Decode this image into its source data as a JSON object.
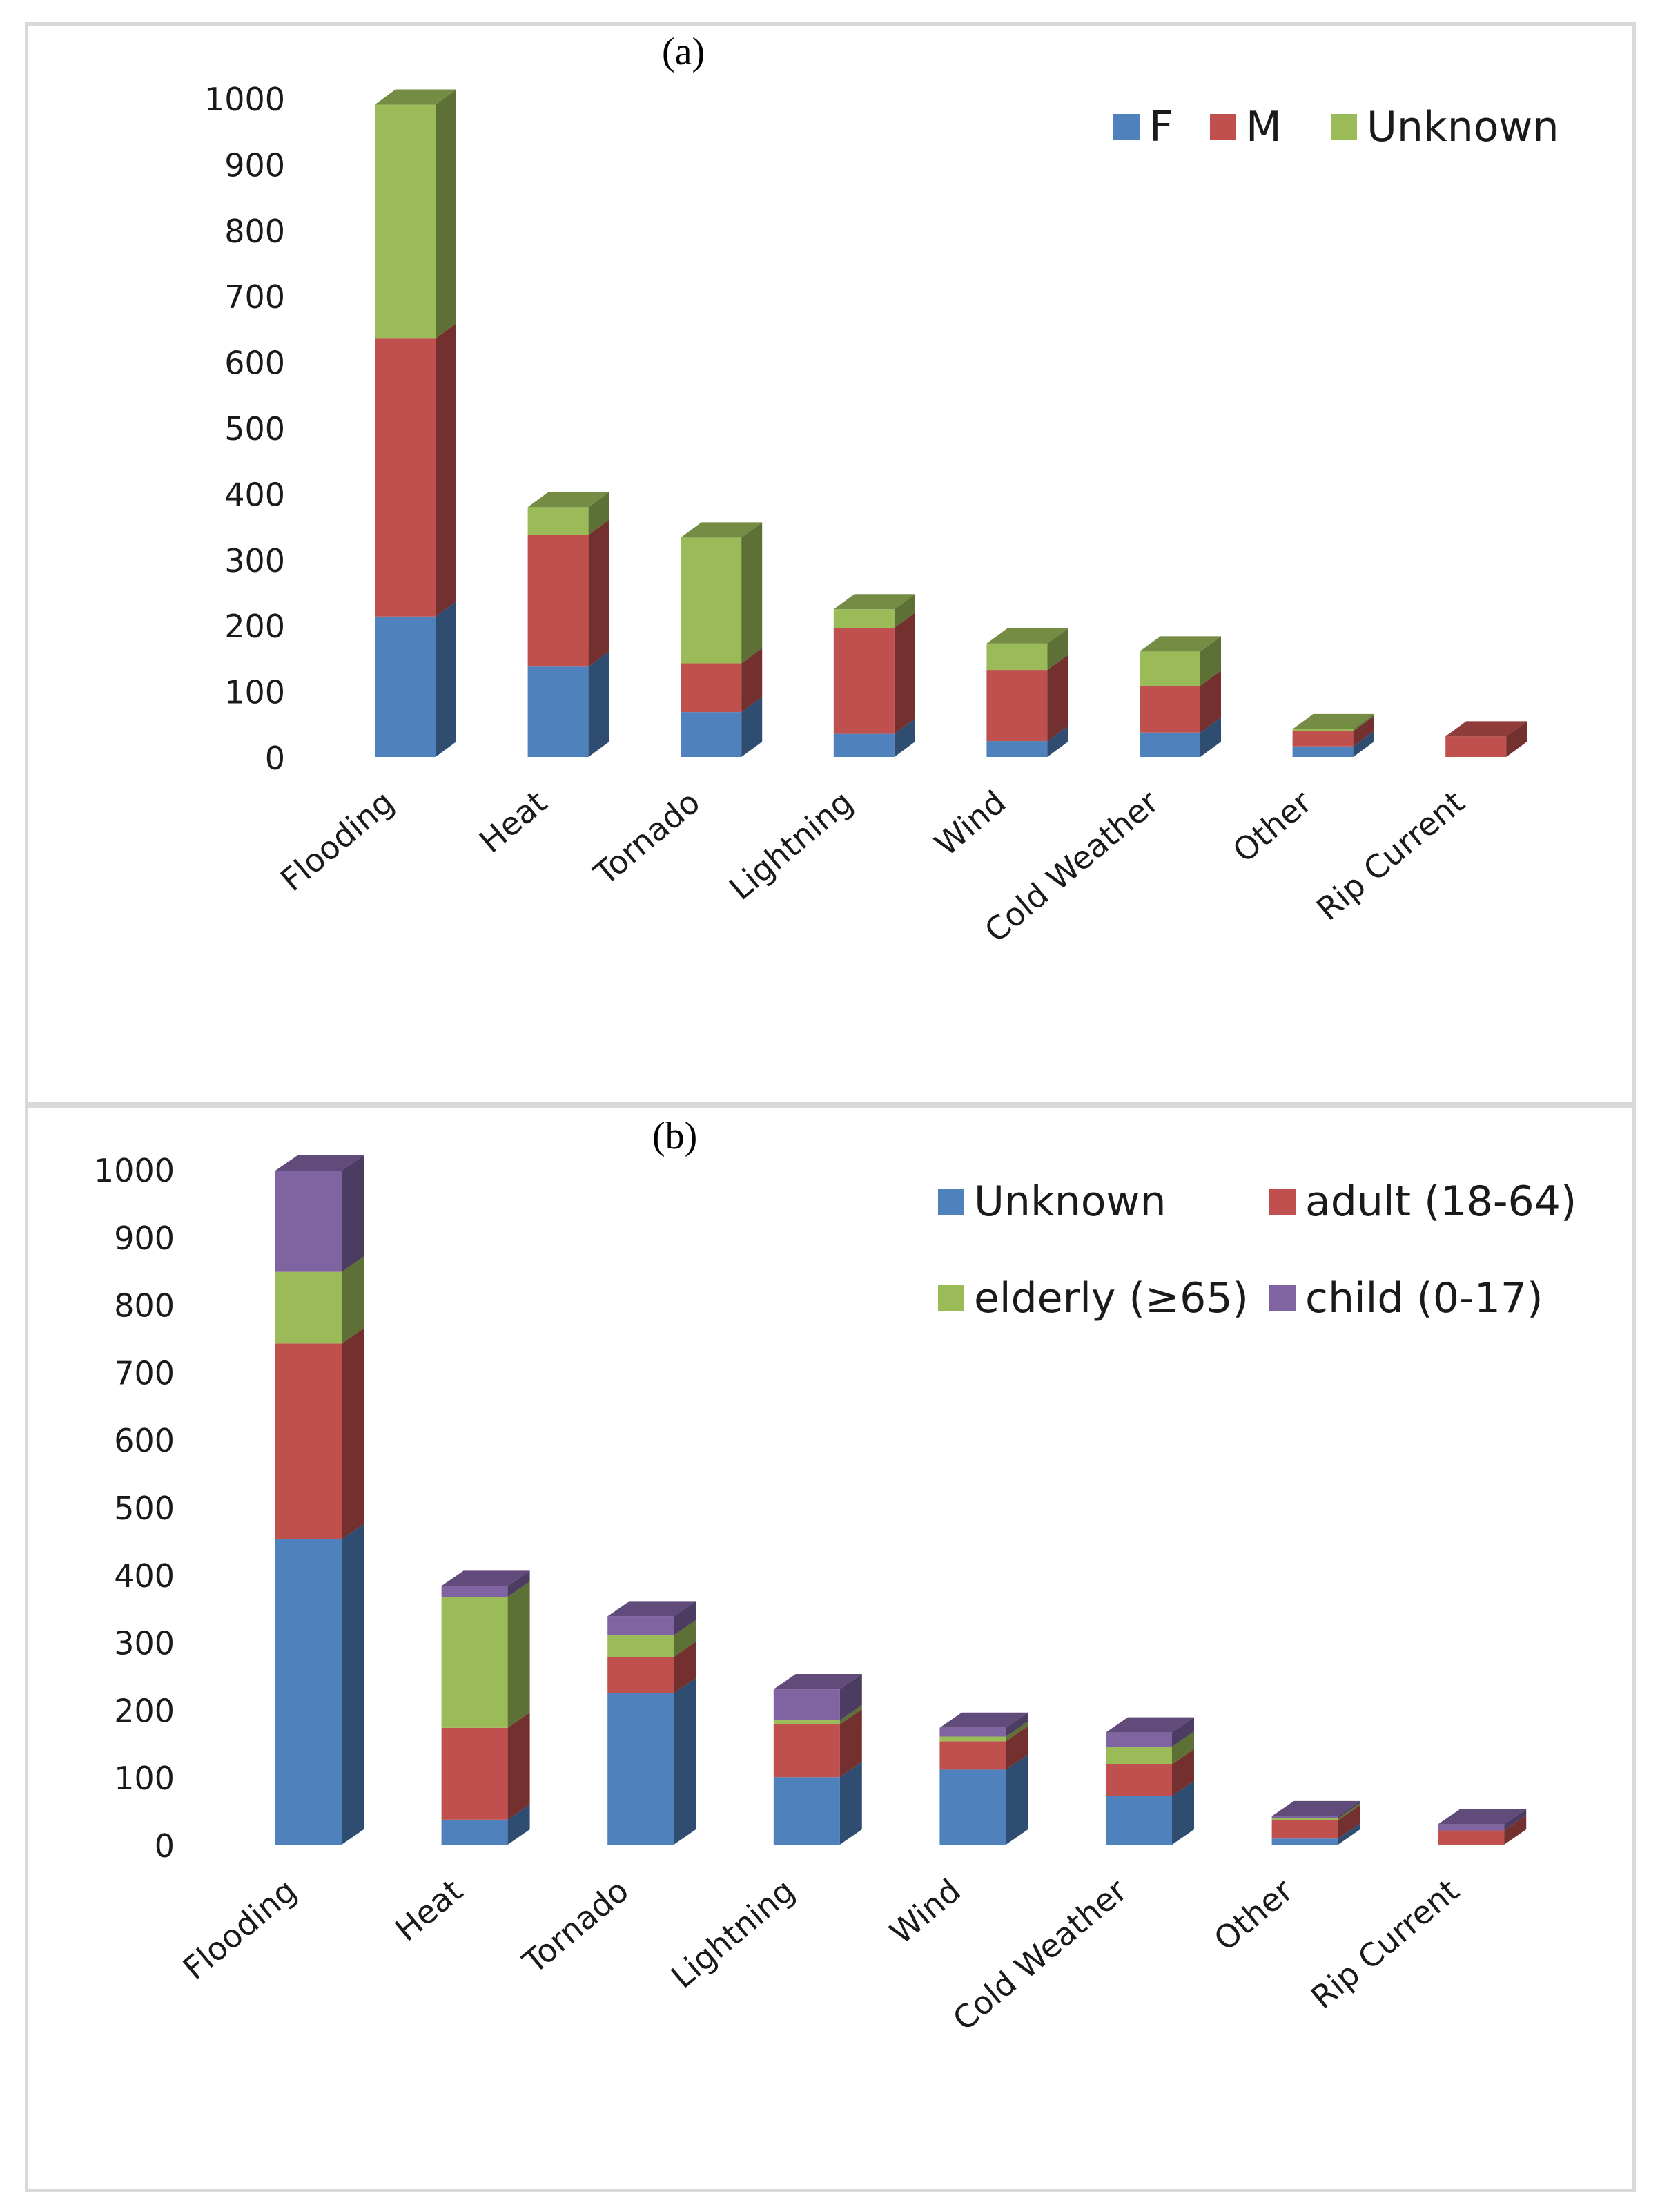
{
  "chart_data": [
    {
      "type": "bar",
      "stacked": true,
      "panel_label": "(a)",
      "title": "",
      "xlabel": "",
      "ylabel": "",
      "ylim": [
        0,
        1000
      ],
      "yticks": [
        "0",
        "100",
        "200",
        "300",
        "400",
        "500",
        "600",
        "700",
        "800",
        "900",
        "1000"
      ],
      "categories": [
        "Flooding",
        "Heat",
        "Tornado",
        "Lightning",
        "Wind",
        "Cold Weather",
        "Other",
        "Rip Current"
      ],
      "series": [
        {
          "name": "F",
          "color": "#4f81bd",
          "values": [
            213,
            137,
            68,
            35,
            24,
            37,
            16,
            0
          ]
        },
        {
          "name": "M",
          "color": "#c0504d",
          "values": [
            422,
            200,
            74,
            161,
            108,
            71,
            23,
            31
          ]
        },
        {
          "name": "Unknown",
          "color": "#9bbb59",
          "values": [
            355,
            42,
            191,
            28,
            40,
            52,
            3,
            0
          ]
        }
      ],
      "legend_position": "top-right"
    },
    {
      "type": "bar",
      "stacked": true,
      "panel_label": "(b)",
      "title": "",
      "xlabel": "",
      "ylabel": "",
      "ylim": [
        0,
        1000
      ],
      "yticks": [
        "0",
        "100",
        "200",
        "300",
        "400",
        "500",
        "600",
        "700",
        "800",
        "900",
        "1000"
      ],
      "categories": [
        "Flooding",
        "Heat",
        "Tornado",
        "Lightning",
        "Wind",
        "Cold Weather",
        "Other",
        "Rip Current"
      ],
      "series": [
        {
          "name": "Unknown",
          "color": "#4f81bd",
          "values": [
            452,
            37,
            224,
            100,
            111,
            72,
            9,
            0
          ]
        },
        {
          "name": "adult (18-64)",
          "color": "#c0504d",
          "values": [
            290,
            136,
            54,
            78,
            42,
            47,
            27,
            21
          ]
        },
        {
          "name": "elderly (≥65)",
          "color": "#9bbb59",
          "values": [
            106,
            194,
            32,
            6,
            7,
            26,
            3,
            0
          ]
        },
        {
          "name": "child (0-17)",
          "color": "#8064a2",
          "values": [
            150,
            16,
            28,
            46,
            13,
            21,
            3,
            9
          ]
        }
      ],
      "legend_position": "top-right"
    }
  ]
}
